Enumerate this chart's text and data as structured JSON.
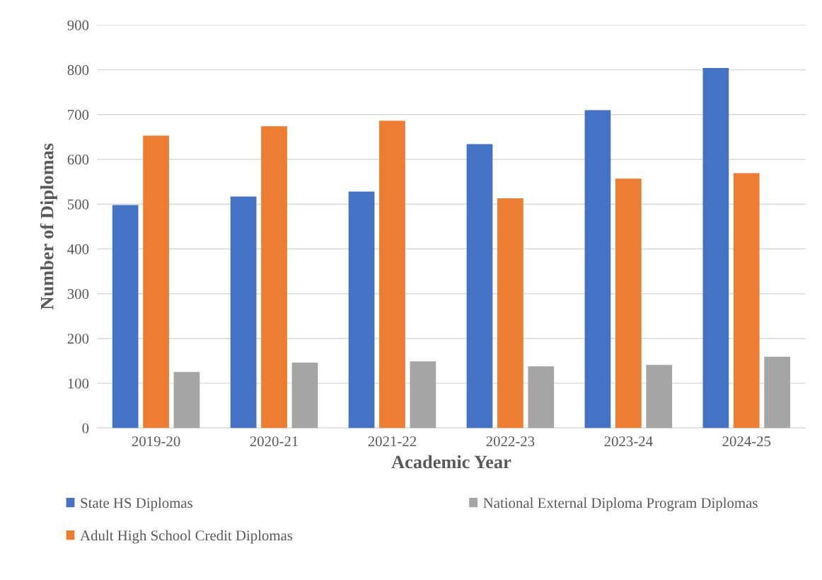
{
  "chart_data": {
    "type": "bar",
    "xlabel": "Academic Year",
    "ylabel": "Number of Diplomas",
    "categories": [
      "2019-20",
      "2020-21",
      "2021-22",
      "2022-23",
      "2023-24",
      "2024-25"
    ],
    "series": [
      {
        "name": "State HS Diplomas",
        "color": "#4472c4",
        "values": [
          498,
          517,
          528,
          634,
          710,
          804
        ]
      },
      {
        "name": "Adult High School Credit Diplomas",
        "color": "#ed7d31",
        "values": [
          653,
          674,
          686,
          513,
          557,
          569
        ]
      },
      {
        "name": "National External Diploma Program Diplomas",
        "color": "#a5a5a5",
        "values": [
          125,
          146,
          149,
          138,
          141,
          159
        ]
      }
    ],
    "ylim": [
      0,
      900
    ],
    "yticks": [
      0,
      100,
      200,
      300,
      400,
      500,
      600,
      700,
      800,
      900
    ],
    "grid": "y",
    "legend": "bottom"
  }
}
